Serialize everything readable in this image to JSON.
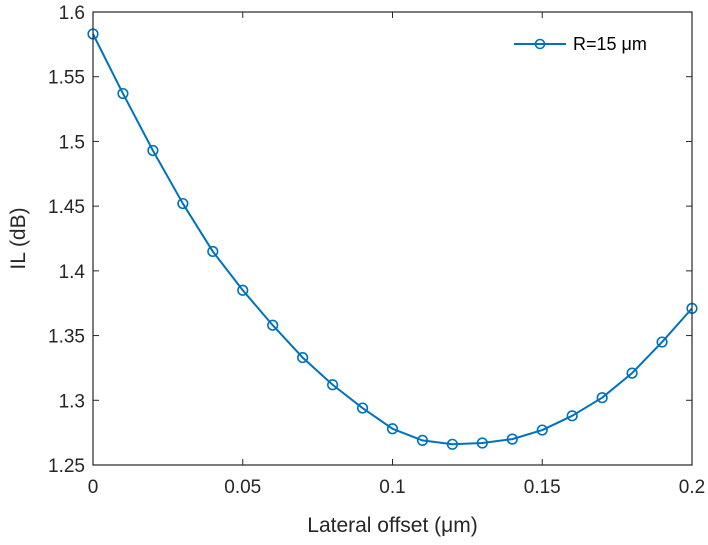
{
  "chart_data": {
    "type": "line",
    "title": "",
    "xlabel": "Lateral offset (μm)",
    "ylabel": "IL (dB)",
    "xlim": [
      0,
      0.2
    ],
    "ylim": [
      1.25,
      1.6
    ],
    "xticks": [
      0,
      0.05,
      0.1,
      0.15,
      0.2
    ],
    "xtick_labels": [
      "0",
      "0.05",
      "0.1",
      "0.15",
      "0.2"
    ],
    "yticks": [
      1.25,
      1.3,
      1.35,
      1.4,
      1.45,
      1.5,
      1.55,
      1.6
    ],
    "ytick_labels": [
      "1.25",
      "1.3",
      "1.35",
      "1.4",
      "1.45",
      "1.5",
      "1.55",
      "1.6"
    ],
    "grid": false,
    "legend_position": "top-right",
    "series": [
      {
        "name": "R=15 μm",
        "color": "#0072BD",
        "marker": "circle",
        "x": [
          0,
          0.01,
          0.02,
          0.03,
          0.04,
          0.05,
          0.06,
          0.07,
          0.08,
          0.09,
          0.1,
          0.11,
          0.12,
          0.13,
          0.14,
          0.15,
          0.16,
          0.17,
          0.18,
          0.19,
          0.2
        ],
        "y": [
          1.583,
          1.537,
          1.493,
          1.452,
          1.415,
          1.385,
          1.358,
          1.333,
          1.312,
          1.294,
          1.278,
          1.269,
          1.266,
          1.267,
          1.27,
          1.277,
          1.288,
          1.302,
          1.321,
          1.345,
          1.371
        ]
      }
    ]
  }
}
